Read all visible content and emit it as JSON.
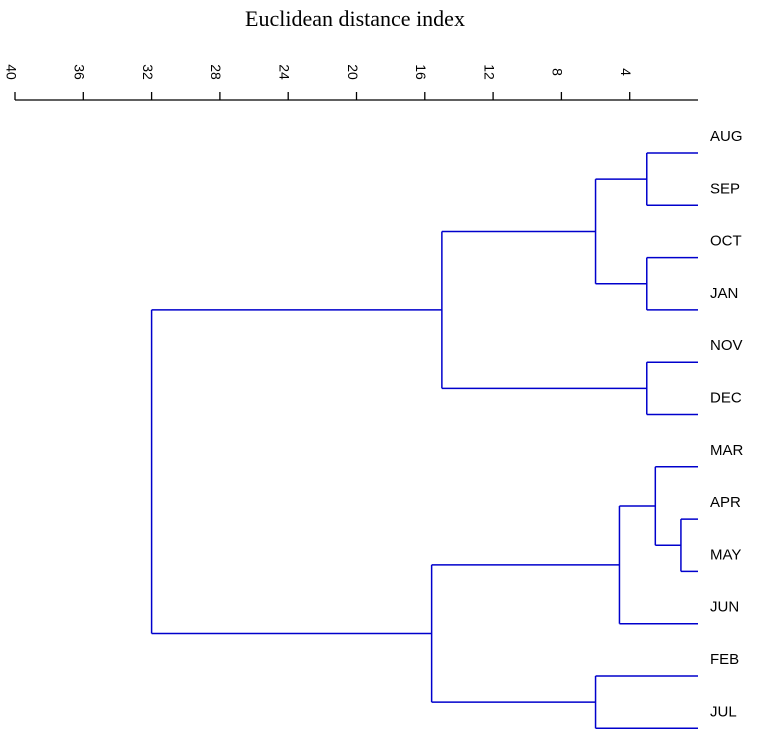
{
  "chart_data": {
    "type": "dendrogram",
    "title": "Euclidean distance index",
    "axis": {
      "xlim": [
        40,
        0
      ],
      "ticks": [
        40,
        36,
        32,
        28,
        24,
        20,
        16,
        12,
        8,
        4
      ],
      "tick_labels": [
        "40",
        "36",
        "32",
        "28",
        "24",
        "20",
        "16",
        "12",
        "8",
        "4"
      ]
    },
    "line_color": "#0000cc",
    "leaves": [
      "AUG",
      "SEP",
      "OCT",
      "JAN",
      "NOV",
      "DEC",
      "MAR",
      "APR",
      "MAY",
      "JUN",
      "FEB",
      "JUL"
    ],
    "merges": [
      {
        "children": [
          "L:APR",
          "L:MAY"
        ],
        "height": 1.0
      },
      {
        "children": [
          "L:MAR",
          "C:0"
        ],
        "height": 2.5
      },
      {
        "children": [
          "L:AUG",
          "L:SEP"
        ],
        "height": 3.0
      },
      {
        "children": [
          "L:OCT",
          "L:JAN"
        ],
        "height": 3.0
      },
      {
        "children": [
          "L:NOV",
          "L:DEC"
        ],
        "height": 3.0
      },
      {
        "children": [
          "C:2",
          "C:3"
        ],
        "height": 6.0
      },
      {
        "children": [
          "C:1",
          "L:JUN"
        ],
        "height": 4.6
      },
      {
        "children": [
          "L:FEB",
          "L:JUL"
        ],
        "height": 6.0
      },
      {
        "children": [
          "C:5",
          "C:4"
        ],
        "height": 15.0
      },
      {
        "children": [
          "C:6",
          "C:7"
        ],
        "height": 15.6
      },
      {
        "children": [
          "C:8",
          "C:9"
        ],
        "height": 32.0
      }
    ]
  }
}
